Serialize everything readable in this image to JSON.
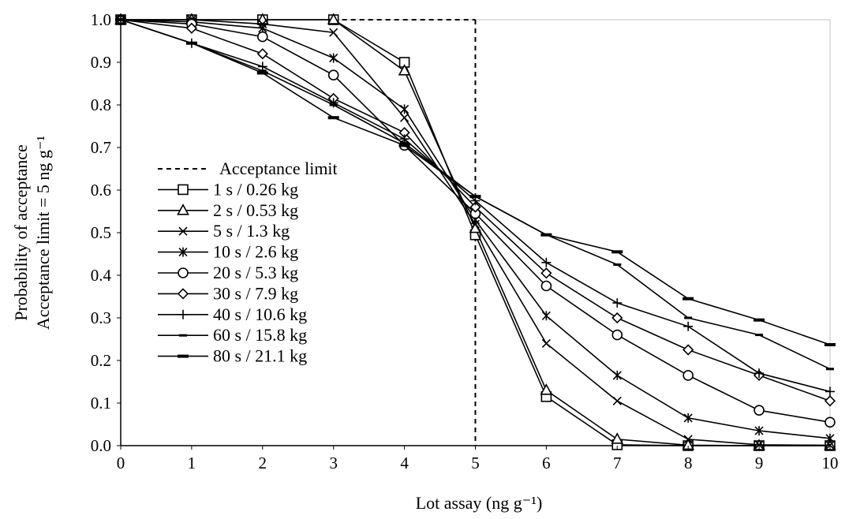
{
  "chart_data": {
    "type": "line",
    "xlabel": "Lot assay (ng g⁻¹)",
    "ylabel_line1": "Probability of acceptance",
    "ylabel_line2": "Acceptance limit = 5 ng g⁻¹",
    "xlim": [
      0,
      10
    ],
    "ylim": [
      0,
      1
    ],
    "x_ticks": [
      "0",
      "1",
      "2",
      "3",
      "4",
      "5",
      "6",
      "7",
      "8",
      "9",
      "10"
    ],
    "y_ticks": [
      "0.0",
      "0.1",
      "0.2",
      "0.3",
      "0.4",
      "0.5",
      "0.6",
      "0.7",
      "0.8",
      "0.9",
      "1.0"
    ],
    "grid": false,
    "legend_position": "left",
    "acceptance_limit": {
      "name": "Acceptance limit",
      "x": 5,
      "style": "dashed"
    },
    "x": [
      0,
      1,
      2,
      3,
      4,
      5,
      6,
      7,
      8,
      9,
      10
    ],
    "series": [
      {
        "name": "1 s / 0.26 kg",
        "marker": "square",
        "values": [
          1.0,
          1.0,
          1.0,
          1.0,
          0.9,
          0.495,
          0.115,
          0.002,
          0.0,
          0.0,
          0.0
        ]
      },
      {
        "name": "2 s / 0.53 kg",
        "marker": "triangle",
        "values": [
          1.0,
          1.0,
          1.0,
          1.0,
          0.88,
          0.51,
          0.13,
          0.015,
          0.001,
          0.0,
          0.0
        ]
      },
      {
        "name": "5 s / 1.3 kg",
        "marker": "x",
        "values": [
          1.0,
          1.0,
          0.99,
          0.97,
          0.77,
          0.52,
          0.24,
          0.105,
          0.015,
          0.002,
          0.001
        ]
      },
      {
        "name": "10 s / 2.6 kg",
        "marker": "asterisk",
        "values": [
          1.0,
          0.995,
          0.98,
          0.91,
          0.79,
          0.53,
          0.305,
          0.165,
          0.065,
          0.035,
          0.017
        ]
      },
      {
        "name": "20 s / 5.3 kg",
        "marker": "circle",
        "values": [
          1.0,
          0.99,
          0.96,
          0.87,
          0.705,
          0.545,
          0.375,
          0.26,
          0.165,
          0.083,
          0.055
        ]
      },
      {
        "name": "30 s / 7.9 kg",
        "marker": "diamond",
        "values": [
          1.0,
          0.98,
          0.92,
          0.815,
          0.735,
          0.56,
          0.405,
          0.3,
          0.225,
          0.165,
          0.105
        ]
      },
      {
        "name": "40 s / 10.6 kg",
        "marker": "plus",
        "values": [
          1.0,
          0.945,
          0.89,
          0.805,
          0.72,
          0.575,
          0.43,
          0.335,
          0.28,
          0.17,
          0.127
        ]
      },
      {
        "name": "60 s / 15.8 kg",
        "marker": "dash",
        "values": [
          1.0,
          0.945,
          0.88,
          0.8,
          0.71,
          0.585,
          0.495,
          0.425,
          0.3,
          0.26,
          0.18
        ]
      },
      {
        "name": "80 s / 21.1 kg",
        "marker": "bar",
        "values": [
          1.0,
          0.945,
          0.875,
          0.77,
          0.705,
          0.585,
          0.495,
          0.455,
          0.345,
          0.295,
          0.237
        ]
      }
    ]
  }
}
